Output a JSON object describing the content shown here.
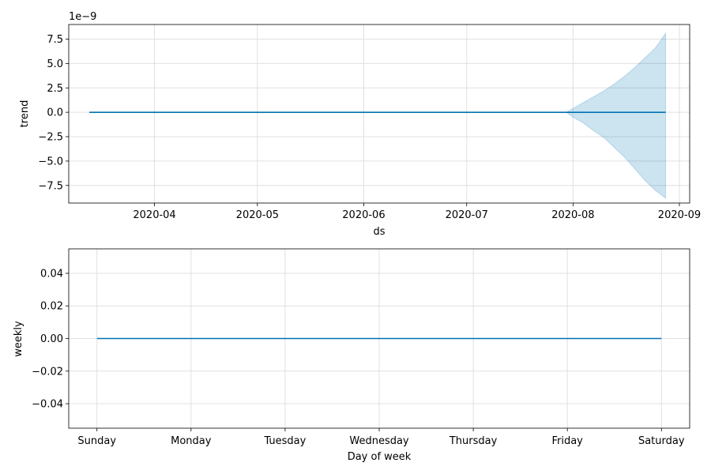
{
  "chart_data": [
    {
      "type": "area",
      "xlabel": "ds",
      "ylabel": "trend",
      "offset_label": "1e−9",
      "x_ticks": [
        "2020-04",
        "2020-05",
        "2020-06",
        "2020-07",
        "2020-08",
        "2020-09"
      ],
      "y_ticks": [
        "−7.5",
        "−5.0",
        "−2.5",
        "0.0",
        "2.5",
        "5.0",
        "7.5"
      ],
      "xlim": [
        "2020-03-07",
        "2020-09-04"
      ],
      "ylim": [
        -9.3,
        9.0
      ],
      "y_unit_scale": "1e-9",
      "grid": true,
      "line": {
        "x": [
          "2020-03-13",
          "2020-08-28"
        ],
        "y": [
          0,
          0
        ]
      },
      "band": {
        "x": [
          "2020-07-30",
          "2020-08-01",
          "2020-08-04",
          "2020-08-07",
          "2020-08-10",
          "2020-08-13",
          "2020-08-16",
          "2020-08-19",
          "2020-08-22",
          "2020-08-25",
          "2020-08-28"
        ],
        "upper": [
          0,
          0.4,
          1.0,
          1.6,
          2.2,
          2.9,
          3.7,
          4.6,
          5.6,
          6.6,
          8.1
        ],
        "lower": [
          0,
          -0.5,
          -1.1,
          -1.9,
          -2.6,
          -3.6,
          -4.6,
          -5.8,
          -7.0,
          -8.0,
          -8.8
        ]
      },
      "colors": {
        "line": "#0072b2",
        "band": "#0072b2"
      }
    },
    {
      "type": "line",
      "xlabel": "Day of week",
      "ylabel": "weekly",
      "categories": [
        "Sunday",
        "Monday",
        "Tuesday",
        "Wednesday",
        "Thursday",
        "Friday",
        "Saturday"
      ],
      "y_ticks": [
        "−0.04",
        "−0.02",
        "0.00",
        "0.02",
        "0.04"
      ],
      "ylim": [
        -0.055,
        0.055
      ],
      "grid": true,
      "values": [
        0,
        0,
        0,
        0,
        0,
        0,
        0
      ],
      "colors": {
        "line": "#0072b2"
      }
    }
  ]
}
